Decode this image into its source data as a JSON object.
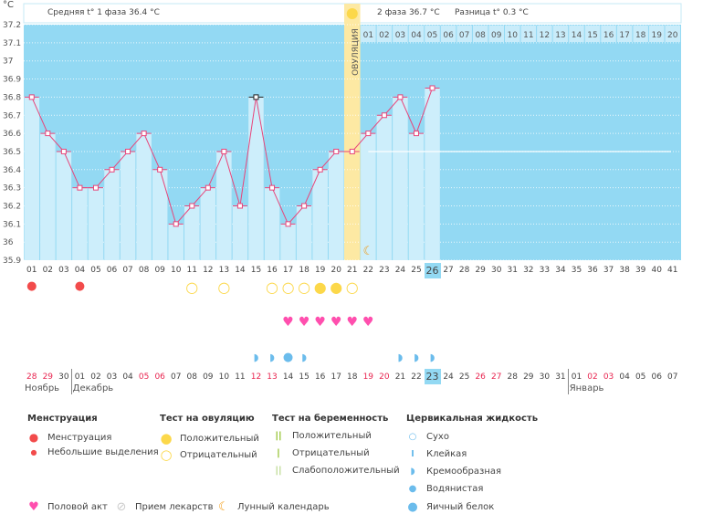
{
  "unit_label": "°C",
  "header": {
    "phase1": "Средняя t° 1 фаза 36.4 °C",
    "phase2": "2 фаза 36.7 °C",
    "diff": "Разница t° 0.3 °C",
    "ovulation_label": "ОВУЛЯЦИЯ"
  },
  "chart_data": {
    "type": "line",
    "ylim": [
      35.9,
      37.2
    ],
    "yticks": [
      "37.2",
      "37.1",
      "37",
      "36.9",
      "36.8",
      "36.7",
      "36.6",
      "36.5",
      "36.4",
      "36.3",
      "36.2",
      "36.1",
      "36",
      "35.9"
    ],
    "cycle_days": [
      "01",
      "02",
      "03",
      "04",
      "05",
      "06",
      "07",
      "08",
      "09",
      "10",
      "11",
      "12",
      "13",
      "14",
      "15",
      "16",
      "17",
      "18",
      "19",
      "20",
      "21",
      "22",
      "23",
      "24",
      "25",
      "26",
      "27",
      "28",
      "29",
      "30",
      "31",
      "32",
      "33",
      "34",
      "35",
      "36",
      "37",
      "38",
      "39",
      "40",
      "41"
    ],
    "temperatures": [
      36.8,
      36.6,
      36.5,
      36.3,
      36.3,
      36.4,
      36.5,
      36.6,
      36.4,
      36.1,
      36.2,
      36.3,
      36.5,
      36.2,
      36.8,
      36.3,
      36.1,
      36.2,
      36.4,
      36.5,
      36.5,
      36.6,
      36.7,
      36.8,
      36.6,
      36.85
    ],
    "ovulation_day": 21,
    "current_day": 26,
    "cover_line": 36.5,
    "post_ovulation_labels": [
      "01",
      "02",
      "03",
      "04",
      "05",
      "06",
      "07",
      "08",
      "09",
      "10",
      "11",
      "12",
      "13",
      "14",
      "15",
      "16",
      "17",
      "18",
      "19",
      "20"
    ],
    "moon_day": 22
  },
  "markers": {
    "menstruation_days": [
      1,
      4
    ],
    "ovulation_test_negative": [
      11,
      13,
      16,
      17,
      18,
      21
    ],
    "ovulation_test_positive": [
      19,
      20
    ],
    "intercourse_days": [
      17,
      18,
      19,
      20,
      21,
      22
    ],
    "cervical_creamy": [
      15,
      16,
      18,
      24,
      25,
      26
    ],
    "cervical_eggwhite": [
      17
    ]
  },
  "calendar": {
    "dates": [
      "28",
      "29",
      "30",
      "01",
      "02",
      "03",
      "04",
      "05",
      "06",
      "07",
      "08",
      "09",
      "10",
      "11",
      "12",
      "13",
      "14",
      "15",
      "16",
      "17",
      "18",
      "19",
      "20",
      "21",
      "22",
      "23",
      "24",
      "25",
      "26",
      "27",
      "28",
      "29",
      "30",
      "31",
      "01",
      "02",
      "03",
      "04",
      "05",
      "06",
      "07"
    ],
    "weekend_idx": [
      0,
      1,
      7,
      8,
      14,
      15,
      21,
      22,
      28,
      29,
      35,
      36
    ],
    "today_idx": 25,
    "months": [
      {
        "label": "Ноябрь",
        "start": 0
      },
      {
        "label": "Декабрь",
        "start": 3
      },
      {
        "label": "Январь",
        "start": 34
      }
    ]
  },
  "legend": {
    "menstruation": {
      "title": "Менструация",
      "items": [
        "Менструация",
        "Небольшие выделения"
      ]
    },
    "ovulation_test": {
      "title": "Тест на овуляцию",
      "items": [
        "Положительный",
        "Отрицательный"
      ]
    },
    "pregnancy_test": {
      "title": "Тест на беременность",
      "items": [
        "Положительный",
        "Отрицательный",
        "Слабоположительный"
      ]
    },
    "cervical": {
      "title": "Цервикальная жидкость",
      "items": [
        "Сухо",
        "Клейкая",
        "Кремообразная",
        "Водянистая",
        "Яичный белок"
      ]
    },
    "bottom": [
      "Половой акт",
      "Прием лекарств",
      "Лунный календарь"
    ]
  },
  "colors": {
    "bg": "#93d9f3",
    "bar": "#cdeefb",
    "ovulation": "#fde9a3",
    "line": "#e8457a",
    "yellow": "#fcd84a",
    "pink": "#ff4fae",
    "drop": "#f24b4b",
    "fluid": "#6bbcec",
    "green": "#8bbd1e"
  }
}
